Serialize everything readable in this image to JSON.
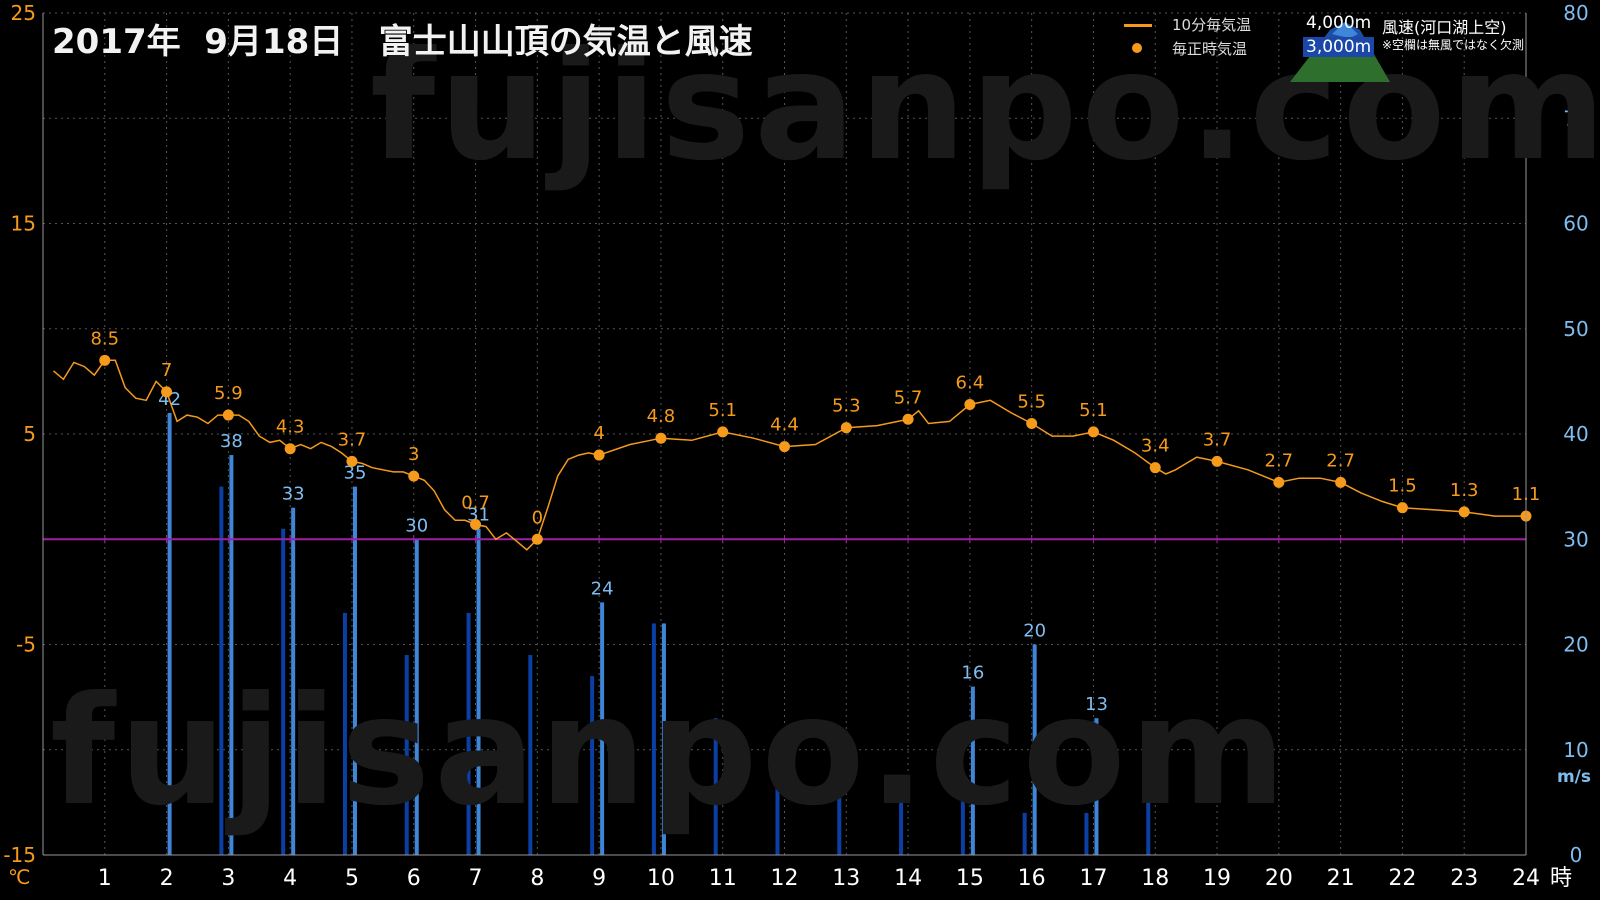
{
  "header": {
    "title": "2017年  9月18日   富士山山頂の気温と風速"
  },
  "watermark": "fujisanpo.com",
  "legend": {
    "temp_line": "10分毎気温",
    "temp_hourly": "毎正時気温",
    "alt_4000": "4,000m",
    "alt_3000": "3,000m",
    "wind_label": "風速(河口湖上空)",
    "wind_note": "※空欄は無風ではなく欠測"
  },
  "colors": {
    "temp": "#f59a1b",
    "wind_4000": "#3f86d8",
    "wind_3000": "#0b3fa3",
    "zero_line": "#a020a0",
    "grid": "#555555",
    "left_axis": "#f59a1b",
    "right_axis": "#7fbcf0"
  },
  "chart_data": {
    "type": "line",
    "x_unit": "時",
    "y_left_unit": "℃",
    "y_right_unit": "m/s",
    "xlim": [
      0,
      24
    ],
    "ylim_left": [
      -15,
      25
    ],
    "ylim_right": [
      0,
      80
    ],
    "x_ticks": [
      1,
      2,
      3,
      4,
      5,
      6,
      7,
      8,
      9,
      10,
      11,
      12,
      13,
      14,
      15,
      16,
      17,
      18,
      19,
      20,
      21,
      22,
      23,
      24
    ],
    "y_left_ticks": [
      -15,
      -5,
      5,
      15,
      25
    ],
    "y_right_ticks": [
      0,
      10,
      20,
      30,
      40,
      50,
      60,
      70,
      80
    ],
    "temp_10min": {
      "name": "10分毎気温",
      "x": [
        0.17,
        0.33,
        0.5,
        0.67,
        0.83,
        1.0,
        1.17,
        1.33,
        1.5,
        1.67,
        1.83,
        2.0,
        2.17,
        2.33,
        2.5,
        2.67,
        2.83,
        3.0,
        3.17,
        3.33,
        3.5,
        3.67,
        3.83,
        4.0,
        4.17,
        4.33,
        4.5,
        4.67,
        4.83,
        5.0,
        5.17,
        5.33,
        5.5,
        5.67,
        5.83,
        6.0,
        6.17,
        6.33,
        6.5,
        6.67,
        6.83,
        7.0,
        7.17,
        7.33,
        7.5,
        7.67,
        7.83,
        8.0,
        8.17,
        8.33,
        8.5,
        8.67,
        8.83,
        9.0,
        9.5,
        10.0,
        10.5,
        11.0,
        11.5,
        12.0,
        12.5,
        13.0,
        13.5,
        14.0,
        14.17,
        14.33,
        14.67,
        15.0,
        15.33,
        15.67,
        16.0,
        16.33,
        16.67,
        17.0,
        17.33,
        17.67,
        18.0,
        18.17,
        18.33,
        18.5,
        18.67,
        19.0,
        19.5,
        20.0,
        20.33,
        20.67,
        21.0,
        21.33,
        21.67,
        22.0,
        22.5,
        23.0,
        23.5,
        24.0
      ],
      "y": [
        8.0,
        7.6,
        8.4,
        8.2,
        7.8,
        8.5,
        8.5,
        7.2,
        6.7,
        6.6,
        7.5,
        7.0,
        5.6,
        5.9,
        5.8,
        5.5,
        5.9,
        5.9,
        5.9,
        5.6,
        4.9,
        4.6,
        4.7,
        4.3,
        4.5,
        4.3,
        4.6,
        4.4,
        4.1,
        3.7,
        3.6,
        3.4,
        3.3,
        3.2,
        3.2,
        3.0,
        2.8,
        2.3,
        1.4,
        0.9,
        0.9,
        0.7,
        0.6,
        0.0,
        0.3,
        -0.1,
        -0.5,
        0.0,
        1.5,
        3.0,
        3.8,
        4.0,
        4.1,
        4.0,
        4.5,
        4.8,
        4.7,
        5.1,
        4.8,
        4.4,
        4.5,
        5.3,
        5.4,
        5.7,
        6.1,
        5.5,
        5.6,
        6.4,
        6.6,
        6.0,
        5.5,
        4.9,
        4.9,
        5.1,
        4.7,
        4.1,
        3.4,
        3.1,
        3.3,
        3.6,
        3.9,
        3.7,
        3.3,
        2.7,
        2.9,
        2.9,
        2.7,
        2.2,
        1.8,
        1.5,
        1.4,
        1.3,
        1.1,
        1.1
      ]
    },
    "temp_hourly": {
      "name": "毎正時気温",
      "x": [
        1,
        2,
        3,
        4,
        5,
        6,
        7,
        8,
        9,
        10,
        11,
        12,
        13,
        14,
        15,
        16,
        17,
        18,
        19,
        20,
        21,
        22,
        23,
        24
      ],
      "y": [
        8.5,
        7,
        5.9,
        4.3,
        3.7,
        3,
        0.7,
        0,
        4,
        4.8,
        5.1,
        4.4,
        5.3,
        5.7,
        6.4,
        5.5,
        5.1,
        3.4,
        3.7,
        2.7,
        2.7,
        1.5,
        1.3,
        1.1
      ],
      "labels": [
        "8.5",
        "7",
        "5.9",
        "4.3",
        "3.7",
        "3",
        "0.7",
        "0",
        "4",
        "4.8",
        "5.1",
        "4.4",
        "5.3",
        "5.7",
        "6.4",
        "5.5",
        "5.1",
        "3.4",
        "3.7",
        "2.7",
        "2.7",
        "1.5",
        "1.3",
        "1.1"
      ]
    },
    "wind_4000m": {
      "name": "4,000m",
      "x": [
        2,
        3,
        4,
        5,
        6,
        7,
        9,
        10,
        15,
        16,
        17
      ],
      "values": [
        42,
        38,
        33,
        35,
        30,
        31,
        24,
        22,
        16,
        20,
        13
      ],
      "labels": [
        "42",
        "38",
        "33",
        "",
        "30",
        "31",
        "24",
        "",
        "16",
        "20",
        "13"
      ]
    },
    "wind_4000m_extra_labels": {
      "x": [
        5
      ],
      "labels": [
        "35"
      ]
    },
    "wind_3000m": {
      "name": "3,000m",
      "x": [
        3,
        4,
        5,
        6,
        7,
        8,
        9,
        10,
        11,
        12,
        13,
        14,
        15,
        16,
        17,
        18
      ],
      "values": [
        35,
        31,
        23,
        19,
        23,
        19,
        17,
        22,
        13,
        8,
        7,
        6,
        6,
        4,
        4,
        5
      ]
    }
  }
}
